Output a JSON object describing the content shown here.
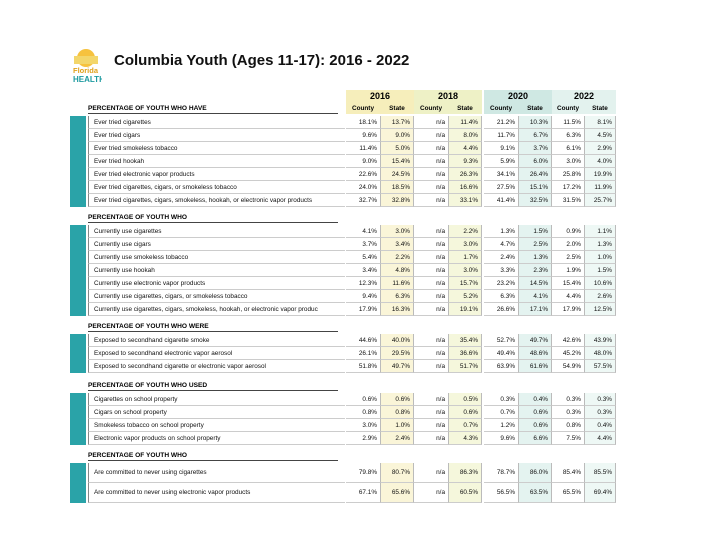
{
  "header": {
    "logo": {
      "line1": "Florida",
      "line2": "HEALTH"
    },
    "title": "Columbia Youth (Ages 11-17): 2016 - 2022"
  },
  "table": {
    "years": [
      "2016",
      "2018",
      "2020",
      "2022"
    ],
    "subheaders": [
      "County",
      "State"
    ],
    "sections": [
      {
        "heading": "PERCENTAGE OF YOUTH WHO HAVE",
        "rows": [
          {
            "label": "Ever tried cigarettes",
            "values": [
              "18.1%",
              "13.7%",
              "n/a",
              "11.4%",
              "21.2%",
              "10.3%",
              "11.5%",
              "8.1%"
            ]
          },
          {
            "label": "Ever tried cigars",
            "values": [
              "9.6%",
              "9.0%",
              "n/a",
              "8.0%",
              "11.7%",
              "6.7%",
              "6.3%",
              "4.5%"
            ]
          },
          {
            "label": "Ever tried smokeless tobacco",
            "values": [
              "11.4%",
              "5.0%",
              "n/a",
              "4.4%",
              "9.1%",
              "3.7%",
              "6.1%",
              "2.9%"
            ]
          },
          {
            "label": "Ever tried hookah",
            "values": [
              "9.0%",
              "15.4%",
              "n/a",
              "9.3%",
              "5.9%",
              "6.0%",
              "3.0%",
              "4.0%"
            ]
          },
          {
            "label": "Ever tried electronic vapor products",
            "values": [
              "22.6%",
              "24.5%",
              "n/a",
              "26.3%",
              "34.1%",
              "26.4%",
              "25.8%",
              "19.9%"
            ]
          },
          {
            "label": "Ever tried cigarettes, cigars, or smokeless tobacco",
            "values": [
              "24.0%",
              "18.5%",
              "n/a",
              "16.6%",
              "27.5%",
              "15.1%",
              "17.2%",
              "11.9%"
            ]
          },
          {
            "label": "Ever tried cigarettes, cigars, smokeless, hookah, or electronic vapor products",
            "values": [
              "32.7%",
              "32.8%",
              "n/a",
              "33.1%",
              "41.4%",
              "32.5%",
              "31.5%",
              "25.7%"
            ]
          }
        ]
      },
      {
        "heading": "PERCENTAGE OF YOUTH WHO",
        "rows": [
          {
            "label": "Currently use cigarettes",
            "values": [
              "4.1%",
              "3.0%",
              "n/a",
              "2.2%",
              "1.3%",
              "1.5%",
              "0.9%",
              "1.1%"
            ]
          },
          {
            "label": "Currently use cigars",
            "values": [
              "3.7%",
              "3.4%",
              "n/a",
              "3.0%",
              "4.7%",
              "2.5%",
              "2.0%",
              "1.3%"
            ]
          },
          {
            "label": "Currently use smokeless tobacco",
            "values": [
              "5.4%",
              "2.2%",
              "n/a",
              "1.7%",
              "2.4%",
              "1.3%",
              "2.5%",
              "1.0%"
            ]
          },
          {
            "label": "Currently use hookah",
            "values": [
              "3.4%",
              "4.8%",
              "n/a",
              "3.0%",
              "3.3%",
              "2.3%",
              "1.9%",
              "1.5%"
            ]
          },
          {
            "label": "Currently use electronic vapor products",
            "values": [
              "12.3%",
              "11.6%",
              "n/a",
              "15.7%",
              "23.2%",
              "14.5%",
              "15.4%",
              "10.6%"
            ]
          },
          {
            "label": "Currently use cigarettes, cigars, or smokeless tobacco",
            "values": [
              "9.4%",
              "6.3%",
              "n/a",
              "5.2%",
              "6.3%",
              "4.1%",
              "4.4%",
              "2.6%"
            ]
          },
          {
            "label": "Currently use cigarettes, cigars, smokeless, hookah, or electronic vapor produc",
            "values": [
              "17.9%",
              "16.3%",
              "n/a",
              "19.1%",
              "26.6%",
              "17.1%",
              "17.9%",
              "12.5%"
            ]
          }
        ]
      },
      {
        "heading": "PERCENTAGE OF YOUTH WHO WERE",
        "rows": [
          {
            "label": "Exposed to secondhand cigarette smoke",
            "values": [
              "44.6%",
              "40.0%",
              "n/a",
              "35.4%",
              "52.7%",
              "49.7%",
              "42.6%",
              "43.9%"
            ]
          },
          {
            "label": "Exposed to secondhand electronic vapor aerosol",
            "values": [
              "26.1%",
              "29.5%",
              "n/a",
              "36.6%",
              "49.4%",
              "48.6%",
              "45.2%",
              "48.0%"
            ]
          },
          {
            "label": "Exposed to secondhand cigarette or electronic vapor aerosol",
            "values": [
              "51.8%",
              "49.7%",
              "n/a",
              "51.7%",
              "63.9%",
              "61.6%",
              "54.9%",
              "57.5%"
            ]
          }
        ]
      },
      {
        "heading": "PERCENTAGE OF YOUTH WHO USED",
        "rows": [
          {
            "label": "Cigarettes on school property",
            "values": [
              "0.6%",
              "0.6%",
              "n/a",
              "0.5%",
              "0.3%",
              "0.4%",
              "0.3%",
              "0.3%"
            ]
          },
          {
            "label": "Cigars on school property",
            "values": [
              "0.8%",
              "0.8%",
              "n/a",
              "0.6%",
              "0.7%",
              "0.6%",
              "0.3%",
              "0.3%"
            ]
          },
          {
            "label": "Smokeless tobacco on school property",
            "values": [
              "3.0%",
              "1.0%",
              "n/a",
              "0.7%",
              "1.2%",
              "0.6%",
              "0.8%",
              "0.4%"
            ]
          },
          {
            "label": "Electronic vapor products on school property",
            "values": [
              "2.9%",
              "2.4%",
              "n/a",
              "4.3%",
              "9.6%",
              "6.6%",
              "7.5%",
              "4.4%"
            ]
          }
        ]
      },
      {
        "heading": "PERCENTAGE OF YOUTH WHO",
        "rows": [
          {
            "label": "Are committed to never using cigarettes",
            "values": [
              "79.8%",
              "80.7%",
              "n/a",
              "86.3%",
              "78.7%",
              "86.0%",
              "85.4%",
              "85.5%"
            ]
          },
          {
            "label": "Are committed to never using electronic vapor products",
            "values": [
              "67.1%",
              "65.6%",
              "n/a",
              "60.5%",
              "56.5%",
              "63.5%",
              "65.5%",
              "69.4%"
            ]
          }
        ]
      }
    ]
  }
}
